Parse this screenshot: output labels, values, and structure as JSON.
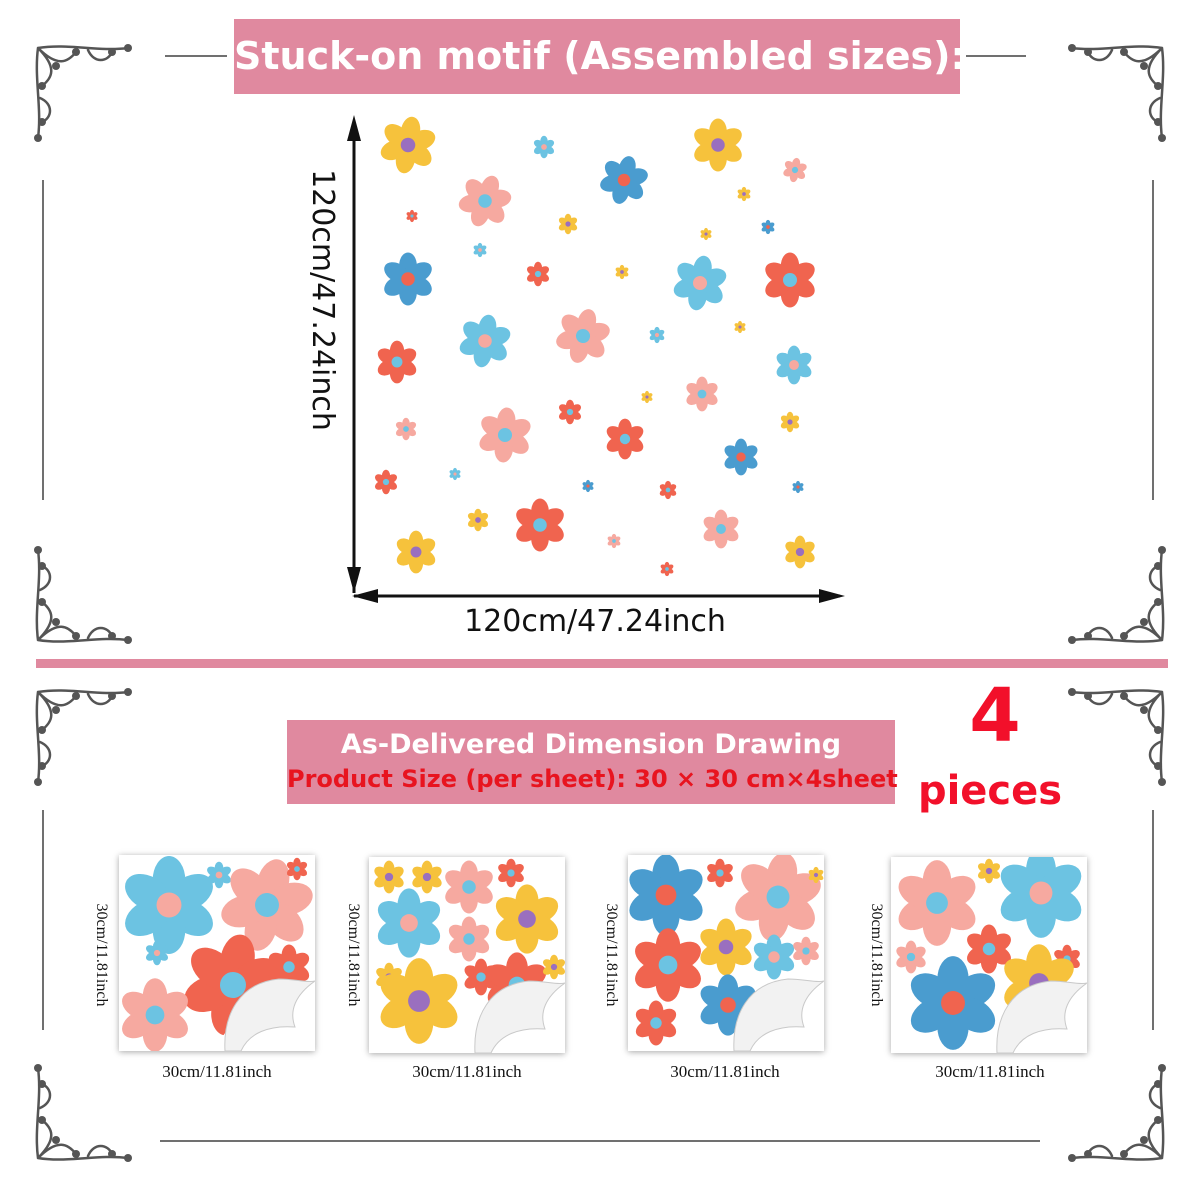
{
  "header": {
    "title": "Stuck-on motif (Assembled sizes):"
  },
  "assembled": {
    "width_label": "120cm/47.24inch",
    "height_label": "120cm/47.24inch"
  },
  "delivered": {
    "title": "As-Delivered Dimension Drawing",
    "subtitle": "Product Size (per sheet): 30 × 30 cm×4sheet",
    "count_number": "4",
    "count_word": "pieces"
  },
  "sheets": [
    {
      "width_label": "30cm/11.81inch",
      "height_label": "30cm/11.81inch"
    },
    {
      "width_label": "30cm/11.81inch",
      "height_label": "30cm/11.81inch"
    },
    {
      "width_label": "30cm/11.81inch",
      "height_label": "30cm/11.81inch"
    },
    {
      "width_label": "30cm/11.81inch",
      "height_label": "30cm/11.81inch"
    }
  ],
  "colors": {
    "banner": "#e0899f",
    "highlight_red": "#f2102a",
    "flower_yellow": "#f6c23c",
    "flower_blue": "#4a9ccf",
    "flower_light_blue": "#6cc3e2",
    "flower_pink": "#f6a9a0",
    "flower_red": "#f0644f"
  },
  "icons": {
    "corner": "flourish-corner-ornament",
    "dimension": "double-arrow-icon"
  }
}
